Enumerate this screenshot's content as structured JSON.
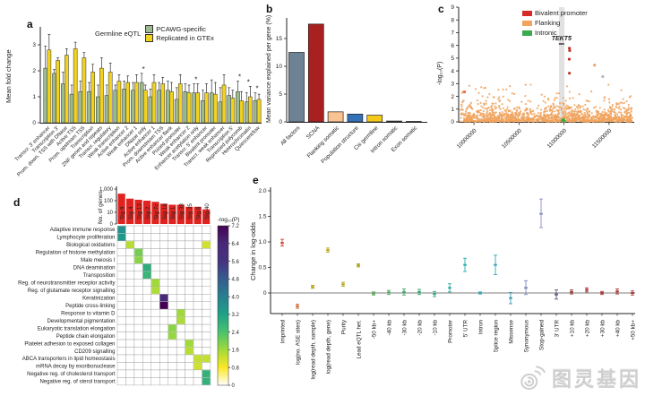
{
  "panel_labels": {
    "a": "a",
    "b": "b",
    "c": "c",
    "d": "d",
    "e": "e"
  },
  "watermark": {
    "text": "图灵基因",
    "logo": "weibo-eye-icon",
    "color": "#cfcfcf"
  },
  "chart_data": [
    {
      "panel": "a",
      "type": "grouped-bar",
      "legend_title": "Germline eQTL",
      "ylabel": "Mean fold change",
      "ylim": [
        0,
        3.6
      ],
      "yticks": [
        0,
        1,
        2,
        3
      ],
      "categories": [
        "Transcr. 3' enhancer",
        "Transcription 3'",
        "Prom. down. TSS with DNase",
        "Active TSS",
        "Prom. upstream TSS",
        "Transcription",
        "ZNF genes and repeats",
        "Transcr. regulatory",
        "Weak transcription",
        "Active enhancer 2",
        "Weak enhancer 1",
        "DNase only",
        "Active enhancer 1",
        "Prom. downstream TSS",
        "Active enhancer flank",
        "Poised promoter",
        "Weak enhancer 2",
        "Enhancer acetylation only",
        "Transcr. 5' enhancer",
        "Bivalent promoter",
        "Transcr. weak enhancer",
        "Transcription 5'",
        "Repressed polycomb",
        "Heterochromatin",
        "Quiescent/low"
      ],
      "series": [
        {
          "name": "PCAWG-specific",
          "color": "#9cba8f",
          "values": [
            2.1,
            1.9,
            1.5,
            1.1,
            1.2,
            1.2,
            1.0,
            1.05,
            1.25,
            1.3,
            1.25,
            1.55,
            1.0,
            1.25,
            1.25,
            0.9,
            1.2,
            1.15,
            0.85,
            1.15,
            0.8,
            1.05,
            1.2,
            0.8,
            0.85
          ],
          "err": [
            0.85,
            0.15,
            0.45,
            0.35,
            0.4,
            0.35,
            0.45,
            0.4,
            0.2,
            0.3,
            0.3,
            0.35,
            0.3,
            0.3,
            0.35,
            0.45,
            0.3,
            0.35,
            0.4,
            0.5,
            0.55,
            0.3,
            0.4,
            0.35,
            0.3
          ]
        },
        {
          "name": "Replicated in GTEx",
          "color": "#f2d21f",
          "values": [
            2.8,
            2.4,
            2.6,
            2.85,
            2.5,
            1.95,
            2.1,
            1.95,
            1.6,
            1.55,
            1.55,
            1.25,
            1.55,
            1.5,
            1.2,
            1.5,
            1.15,
            1.15,
            1.15,
            1.1,
            1.45,
            0.95,
            0.85,
            1.0,
            0.9
          ],
          "err": [
            0.6,
            0.1,
            0.25,
            0.25,
            0.2,
            0.3,
            0.4,
            0.35,
            0.25,
            0.25,
            0.3,
            0.2,
            0.3,
            0.25,
            0.35,
            0.35,
            0.3,
            0.35,
            0.35,
            0.45,
            0.4,
            0.3,
            0.35,
            0.4,
            0.2
          ]
        }
      ],
      "asterisk_indices": [
        11,
        17,
        22,
        23,
        24
      ]
    },
    {
      "panel": "b",
      "type": "bar",
      "ylabel": "Mean variance explained per gene (%)",
      "ylim": [
        0,
        18.5
      ],
      "yticks": [
        0,
        5,
        10,
        15
      ],
      "categories": [
        "All factors",
        "SCNA",
        "Flanking somatic",
        "Population structure",
        "Cis germline",
        "Intron somatic",
        "Exon somatic"
      ],
      "values": [
        12.5,
        17.6,
        1.8,
        1.4,
        1.2,
        0.15,
        0.05
      ],
      "colors": [
        "#6e8296",
        "#a8201f",
        "#f9c391",
        "#3472b8",
        "#f5c918",
        "#4a4a4a",
        "#9a9a9a"
      ]
    },
    {
      "panel": "c",
      "type": "scatter",
      "ylabel": "-log₁₀(P)",
      "ylim": [
        0,
        9
      ],
      "yticks": [
        0,
        1,
        2,
        3,
        4,
        5,
        6,
        7,
        8,
        9
      ],
      "xlim": [
        9850000,
        11760000
      ],
      "xticks": [
        "10000000",
        "10500000",
        "11000000",
        "11500000"
      ],
      "legend": [
        {
          "label": "Bivalent promoter",
          "color": "#d42a28"
        },
        {
          "label": "Flanking",
          "color": "#f2a35e"
        },
        {
          "label": "Intronic",
          "color": "#3aab4c"
        }
      ],
      "gene_label": "TEKT5",
      "gene_x": 10972000,
      "gene_band": [
        10945000,
        11005000
      ],
      "highlight_points": [
        {
          "x": 11060000,
          "y": 5.78,
          "color": "#c03028"
        },
        {
          "x": 11063000,
          "y": 5.6,
          "color": "#c03028"
        },
        {
          "x": 11058000,
          "y": 4.92,
          "color": "#c03028"
        },
        {
          "x": 11060000,
          "y": 3.82,
          "color": "#c03028"
        },
        {
          "x": 11340000,
          "y": 4.45,
          "color": "#f2a35e"
        },
        {
          "x": 11430000,
          "y": 3.55,
          "color": "#beb2cb"
        },
        {
          "x": 9895000,
          "y": 2.35,
          "color": "#e07050"
        },
        {
          "x": 10980000,
          "y": 0.12,
          "color": "#3aab4c"
        },
        {
          "x": 10995000,
          "y": 0.18,
          "color": "#3aab4c"
        },
        {
          "x": 11005000,
          "y": 0.08,
          "color": "#3aab4c"
        }
      ],
      "background": {
        "n": 1300,
        "color": "#f0a25c",
        "y_typical": [
          0,
          3.1
        ]
      }
    },
    {
      "panel": "d",
      "type": "heatmap",
      "top_bar": {
        "ylabel": "No. of genes",
        "ytick_labels": [
          "1,000",
          "100",
          "10",
          "0"
        ],
        "color": "#e0231f",
        "values": [
          400,
          150,
          120,
          100,
          80,
          55,
          45,
          45,
          30,
          30,
          18
        ]
      },
      "columns": [
        "Sig 9",
        "Sig 4",
        "Sig 13",
        "Sig 2",
        "Sig 7c",
        "Sig 18",
        "Sig 1",
        "Sig 38",
        "Sig 35",
        "Sig 8",
        "Sig 40"
      ],
      "rows": [
        "Adaptive immune response",
        "Lymphocyte proliferation",
        "Biological oxidations",
        "Regulation of histone methylation",
        "Male meiosis I",
        "DNA deamination",
        "Transposition",
        "Reg. of neurotransmitter receptor activity",
        "Reg. of glutamate receptor signalling",
        "Keratinization",
        "Peptide cross-linking",
        "Response to vitamin D",
        "Developmental pigmentation",
        "Eukaryotic translation elongation",
        "Peptide chain elongation",
        "Platelet adhesion to exposed collagen",
        "CD209 signalling",
        "ABCA transporters in lipid homeostasis",
        "mRNA decay by exoribonuclease",
        "Negative reg. of cholesterol transport",
        "Negative reg. of sterol transport"
      ],
      "cells": [
        {
          "row": 0,
          "col": 0,
          "value": 3.6
        },
        {
          "row": 1,
          "col": 0,
          "value": 3.4
        },
        {
          "row": 2,
          "col": 1,
          "value": 1.4
        },
        {
          "row": 2,
          "col": 10,
          "value": 1.2
        },
        {
          "row": 3,
          "col": 2,
          "value": 2.0
        },
        {
          "row": 4,
          "col": 2,
          "value": 1.8
        },
        {
          "row": 5,
          "col": 3,
          "value": 2.9
        },
        {
          "row": 6,
          "col": 3,
          "value": 2.7
        },
        {
          "row": 7,
          "col": 4,
          "value": 1.6
        },
        {
          "row": 8,
          "col": 4,
          "value": 1.5
        },
        {
          "row": 9,
          "col": 5,
          "value": 6.3
        },
        {
          "row": 10,
          "col": 5,
          "value": 7.2
        },
        {
          "row": 11,
          "col": 7,
          "value": 1.6
        },
        {
          "row": 12,
          "col": 7,
          "value": 1.5
        },
        {
          "row": 13,
          "col": 6,
          "value": 1.8
        },
        {
          "row": 14,
          "col": 6,
          "value": 1.7
        },
        {
          "row": 15,
          "col": 8,
          "value": 1.6
        },
        {
          "row": 16,
          "col": 8,
          "value": 1.4
        },
        {
          "row": 17,
          "col": 9,
          "value": 1.3
        },
        {
          "row": 17,
          "col": 10,
          "value": 1.3
        },
        {
          "row": 18,
          "col": 9,
          "value": 1.2
        },
        {
          "row": 19,
          "col": 10,
          "value": 2.8
        },
        {
          "row": 20,
          "col": 10,
          "value": 2.8
        }
      ],
      "colorbar": {
        "title": "-log₁₀(P)",
        "ticks": [
          0,
          0.8,
          1.6,
          2.4,
          3.2,
          4.0,
          4.8,
          5.6,
          6.4,
          7.2
        ],
        "stops": [
          [
            0,
            "#ffffff"
          ],
          [
            0.8,
            "#fde725"
          ],
          [
            1.6,
            "#a0da39"
          ],
          [
            2.4,
            "#4ac16d"
          ],
          [
            3.2,
            "#1fa187"
          ],
          [
            4.0,
            "#277f8e"
          ],
          [
            4.8,
            "#365c8d"
          ],
          [
            5.6,
            "#46327e"
          ],
          [
            6.4,
            "#482878"
          ],
          [
            7.2,
            "#440154"
          ]
        ]
      }
    },
    {
      "panel": "e",
      "type": "point-error",
      "ylabel": "Change in log-odds",
      "ylim": [
        -0.45,
        2.1
      ],
      "yticks": [
        0,
        0.5,
        1.0,
        1.5,
        2.0
      ],
      "points": [
        {
          "label": "Imprinted",
          "value": 0.98,
          "lo": 0.92,
          "hi": 1.05,
          "color": "#c84a32"
        },
        {
          "label": "log(no. ASE sites)",
          "value": -0.26,
          "lo": -0.3,
          "hi": -0.22,
          "color": "#cd6d31"
        },
        {
          "label": "log(read depth, sample)",
          "value": 0.12,
          "lo": 0.09,
          "hi": 0.15,
          "color": "#bfa51c"
        },
        {
          "label": "log(read depth, gene)",
          "value": 0.84,
          "lo": 0.8,
          "hi": 0.88,
          "color": "#bfa51c"
        },
        {
          "label": "Purity",
          "value": 0.17,
          "lo": 0.13,
          "hi": 0.21,
          "color": "#b8a620"
        },
        {
          "label": "Lead eQTL het.",
          "value": 0.54,
          "lo": 0.51,
          "hi": 0.57,
          "color": "#a7a424"
        },
        {
          "label": "-50 kb+",
          "value": -0.01,
          "lo": -0.04,
          "hi": 0.02,
          "color": "#55a44f"
        },
        {
          "label": "-40 kb",
          "value": 0.01,
          "lo": -0.03,
          "hi": 0.05,
          "color": "#4ba65c"
        },
        {
          "label": "-30 kb",
          "value": 0.02,
          "lo": -0.04,
          "hi": 0.08,
          "color": "#41a76a"
        },
        {
          "label": "-20 kb",
          "value": 0.02,
          "lo": -0.03,
          "hi": 0.07,
          "color": "#38a878"
        },
        {
          "label": "-10 kb",
          "value": -0.02,
          "lo": -0.07,
          "hi": 0.03,
          "color": "#30a98a"
        },
        {
          "label": "Promoter",
          "value": 0.1,
          "lo": 0.02,
          "hi": 0.18,
          "color": "#2aab9d"
        },
        {
          "label": "5' UTR",
          "value": 0.55,
          "lo": 0.42,
          "hi": 0.68,
          "color": "#29aeab"
        },
        {
          "label": "Intron",
          "value": 0.0,
          "lo": -0.02,
          "hi": 0.02,
          "color": "#2fa9b2"
        },
        {
          "label": "Splice region",
          "value": 0.55,
          "lo": 0.36,
          "hi": 0.74,
          "color": "#35a3b5"
        },
        {
          "label": "Missense",
          "value": -0.1,
          "lo": -0.21,
          "hi": 0.01,
          "color": "#3f9bb7"
        },
        {
          "label": "Synonymous",
          "value": 0.1,
          "lo": -0.03,
          "hi": 0.24,
          "color": "#7e87bb"
        },
        {
          "label": "Stop-gained",
          "value": 1.55,
          "lo": 1.28,
          "hi": 1.84,
          "color": "#8a8cc3"
        },
        {
          "label": "3' UTR",
          "value": -0.03,
          "lo": -0.12,
          "hi": 0.06,
          "color": "#56537e"
        },
        {
          "label": "+10 kb",
          "value": 0.02,
          "lo": -0.02,
          "hi": 0.06,
          "color": "#9e3a3f"
        },
        {
          "label": "+20 kb",
          "value": 0.06,
          "lo": 0.02,
          "hi": 0.1,
          "color": "#ae3a3a"
        },
        {
          "label": "+30 kb",
          "value": 0.0,
          "lo": -0.03,
          "hi": 0.03,
          "color": "#a93c3c"
        },
        {
          "label": "+40 kb",
          "value": 0.03,
          "lo": -0.02,
          "hi": 0.08,
          "color": "#b03a3a"
        },
        {
          "label": "+50 kb+",
          "value": 0.0,
          "lo": -0.04,
          "hi": 0.04,
          "color": "#a93c3c"
        }
      ]
    }
  ]
}
